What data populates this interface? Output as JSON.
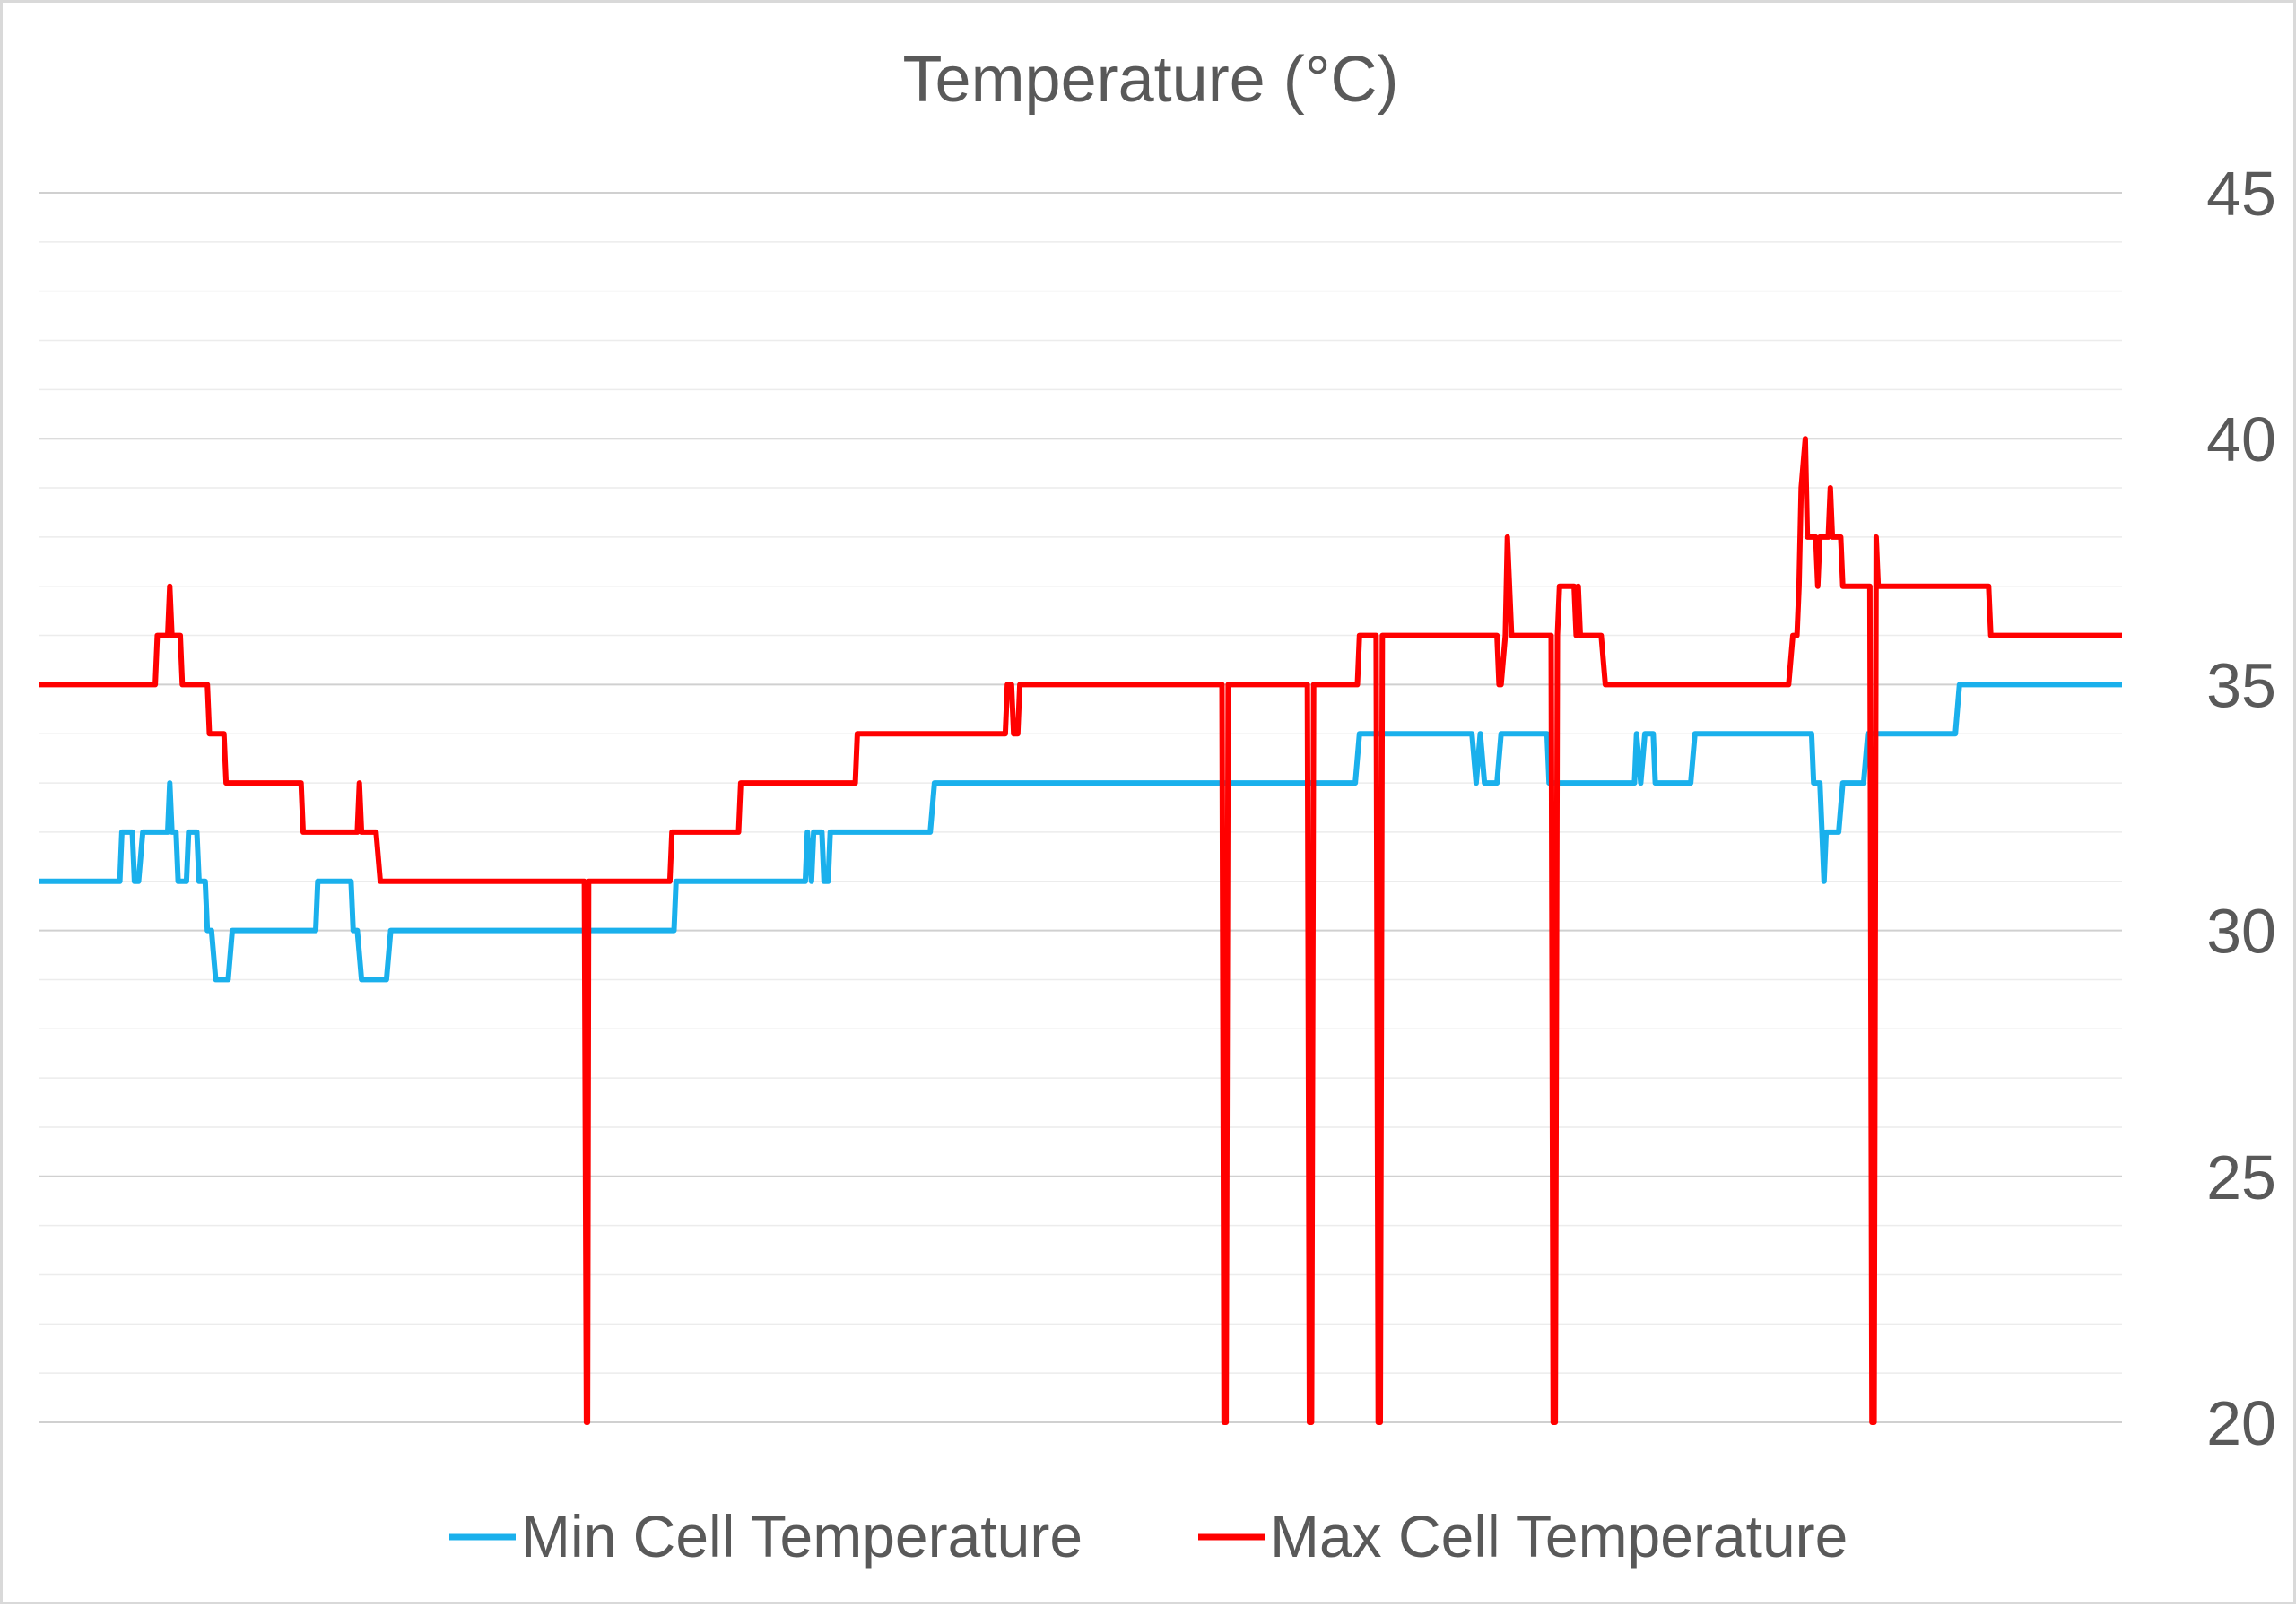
{
  "chart_data": {
    "type": "line",
    "title": "Temperature (°C)",
    "xlabel": "",
    "ylabel": "",
    "y_axis_side": "right",
    "ylim": [
      20,
      45
    ],
    "y_ticks": [
      "20",
      "25",
      "30",
      "35",
      "40",
      "45"
    ],
    "major_gridlines": true,
    "minor_gridlines": true,
    "legend_position": "bottom",
    "x_domain": [
      0,
      1000
    ],
    "series": [
      {
        "name": "Min Cell Temperature",
        "color": "#1ab0ec",
        "points": [
          [
            0,
            31
          ],
          [
            39,
            31
          ],
          [
            40,
            32
          ],
          [
            45,
            32
          ],
          [
            46,
            31
          ],
          [
            48,
            31
          ],
          [
            50,
            32
          ],
          [
            62,
            32
          ],
          [
            63,
            33
          ],
          [
            64,
            32
          ],
          [
            66,
            32
          ],
          [
            67,
            31
          ],
          [
            71,
            31
          ],
          [
            72,
            32
          ],
          [
            76,
            32
          ],
          [
            77,
            31
          ],
          [
            80,
            31
          ],
          [
            81,
            30
          ],
          [
            83,
            30
          ],
          [
            85,
            29
          ],
          [
            91,
            29
          ],
          [
            93,
            30
          ],
          [
            133,
            30
          ],
          [
            134,
            31
          ],
          [
            150,
            31
          ],
          [
            151,
            30
          ],
          [
            153,
            30
          ],
          [
            155,
            29
          ],
          [
            167,
            29
          ],
          [
            169,
            30
          ],
          [
            305,
            30
          ],
          [
            306,
            31
          ],
          [
            368,
            31
          ],
          [
            369,
            32
          ],
          [
            371,
            31
          ],
          [
            372,
            32
          ],
          [
            376,
            32
          ],
          [
            377,
            31
          ],
          [
            379,
            31
          ],
          [
            380,
            32
          ],
          [
            428,
            32
          ],
          [
            430,
            33
          ],
          [
            632,
            33
          ],
          [
            634,
            34
          ],
          [
            688,
            34
          ],
          [
            690,
            33
          ],
          [
            692,
            34
          ],
          [
            694,
            33
          ],
          [
            700,
            33
          ],
          [
            702,
            34
          ],
          [
            724,
            34
          ],
          [
            725,
            33
          ],
          [
            766,
            33
          ],
          [
            767,
            34
          ],
          [
            769,
            33
          ],
          [
            771,
            34
          ],
          [
            775,
            34
          ],
          [
            776,
            33
          ],
          [
            793,
            33
          ],
          [
            795,
            34
          ],
          [
            851,
            34
          ],
          [
            852,
            33
          ],
          [
            855,
            33
          ],
          [
            857,
            31
          ],
          [
            858,
            32
          ],
          [
            864,
            32
          ],
          [
            866,
            33
          ],
          [
            876,
            33
          ],
          [
            878,
            34
          ],
          [
            920,
            34
          ],
          [
            922,
            35
          ],
          [
            1000,
            35
          ]
        ]
      },
      {
        "name": "Max Cell Temperature",
        "color": "#ff0000",
        "points": [
          [
            0,
            35
          ],
          [
            56,
            35
          ],
          [
            57,
            36
          ],
          [
            62,
            36
          ],
          [
            63,
            37
          ],
          [
            64,
            36
          ],
          [
            68,
            36
          ],
          [
            69,
            35
          ],
          [
            81,
            35
          ],
          [
            82,
            34
          ],
          [
            89,
            34
          ],
          [
            90,
            33
          ],
          [
            126,
            33
          ],
          [
            127,
            32
          ],
          [
            153,
            32
          ],
          [
            154,
            33
          ],
          [
            155,
            32
          ],
          [
            162,
            32
          ],
          [
            164,
            31
          ],
          [
            262,
            31
          ],
          [
            263,
            20
          ],
          [
            263.5,
            20
          ],
          [
            264,
            31
          ],
          [
            303,
            31
          ],
          [
            304,
            32
          ],
          [
            336,
            32
          ],
          [
            337,
            33
          ],
          [
            392,
            33
          ],
          [
            393,
            34
          ],
          [
            464,
            34
          ],
          [
            465,
            35
          ],
          [
            467,
            35
          ],
          [
            468,
            34
          ],
          [
            470,
            34
          ],
          [
            471,
            35
          ],
          [
            568,
            35
          ],
          [
            569,
            20
          ],
          [
            570,
            20
          ],
          [
            571,
            35
          ],
          [
            609,
            35
          ],
          [
            610,
            20
          ],
          [
            611,
            20
          ],
          [
            612,
            35
          ],
          [
            633,
            35
          ],
          [
            634,
            36
          ],
          [
            642,
            36
          ],
          [
            643,
            20
          ],
          [
            644,
            20
          ],
          [
            645,
            36
          ],
          [
            700,
            36
          ],
          [
            701,
            35
          ],
          [
            702,
            35
          ],
          [
            704,
            36
          ],
          [
            705,
            38
          ],
          [
            707,
            36
          ],
          [
            726,
            36
          ],
          [
            727,
            20
          ],
          [
            728,
            20
          ],
          [
            729,
            36
          ],
          [
            730,
            37
          ],
          [
            737,
            37
          ],
          [
            738,
            36
          ],
          [
            739,
            37
          ],
          [
            740,
            36
          ],
          [
            750,
            36
          ],
          [
            752,
            35
          ],
          [
            840,
            35
          ],
          [
            842,
            36
          ],
          [
            844,
            36
          ],
          [
            845,
            37
          ],
          [
            846,
            39
          ],
          [
            848,
            40
          ],
          [
            849,
            38
          ],
          [
            853,
            38
          ],
          [
            854,
            37
          ],
          [
            855,
            38
          ],
          [
            859,
            38
          ],
          [
            860,
            39
          ],
          [
            861,
            38
          ],
          [
            865,
            38
          ],
          [
            866,
            37
          ],
          [
            879,
            37
          ],
          [
            880,
            20
          ],
          [
            881,
            20
          ],
          [
            882,
            38
          ],
          [
            883,
            37
          ],
          [
            936,
            37
          ],
          [
            937,
            36
          ],
          [
            1000,
            36
          ]
        ]
      }
    ]
  }
}
